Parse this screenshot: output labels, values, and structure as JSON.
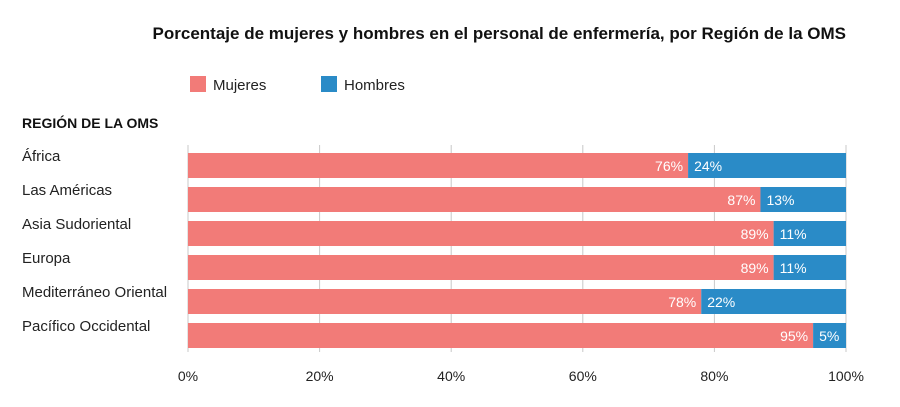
{
  "chart_data": {
    "type": "bar",
    "orientation": "horizontal",
    "stacked": true,
    "title": "Porcentaje de mujeres y hombres en el personal de enfermería, por Región de la OMS",
    "category_header": "REGIÓN DE LA OMS",
    "categories": [
      "África",
      "Las Américas",
      "Asia Sudoriental",
      "Europa",
      "Mediterráneo Oriental",
      "Pacífico Occidental"
    ],
    "series": [
      {
        "name": "Mujeres",
        "color": "#F27B78",
        "values": [
          76,
          87,
          89,
          89,
          78,
          95
        ]
      },
      {
        "name": "Hombres",
        "color": "#2A8BC7",
        "values": [
          24,
          13,
          11,
          11,
          22,
          5
        ]
      }
    ],
    "xlim": [
      0,
      100
    ],
    "x_ticks": [
      "0%",
      "20%",
      "40%",
      "60%",
      "80%",
      "100%"
    ],
    "grid": "vertical",
    "legend": "top"
  }
}
